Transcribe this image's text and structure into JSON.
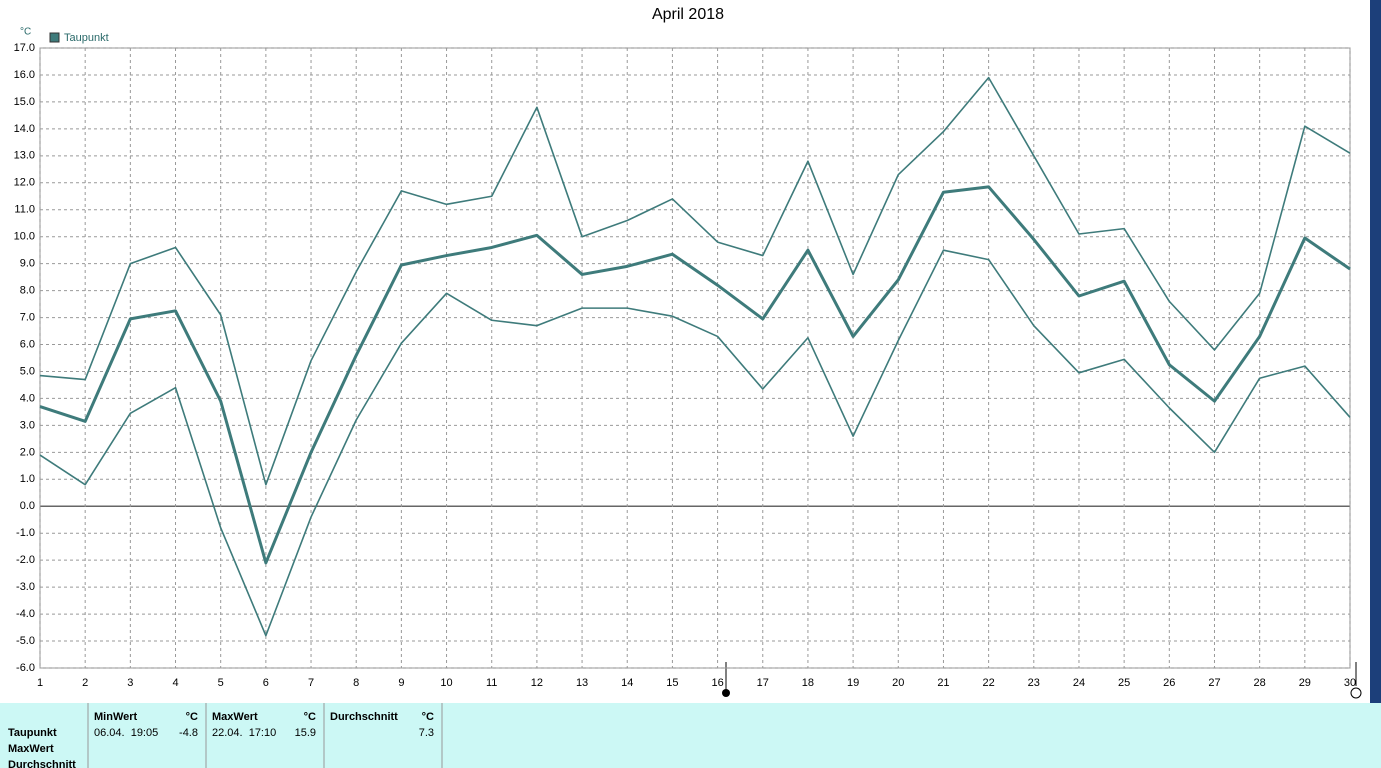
{
  "chart_data": {
    "type": "line",
    "title": "April 2018",
    "y_label": "°C",
    "x": [
      1,
      2,
      3,
      4,
      5,
      6,
      7,
      8,
      9,
      10,
      11,
      12,
      13,
      14,
      15,
      16,
      17,
      18,
      19,
      20,
      21,
      22,
      23,
      24,
      25,
      26,
      27,
      28,
      29,
      30
    ],
    "xlim": [
      1,
      30
    ],
    "xticks": [
      1,
      2,
      3,
      4,
      5,
      6,
      7,
      8,
      9,
      10,
      11,
      12,
      13,
      14,
      15,
      16,
      17,
      18,
      19,
      20,
      21,
      22,
      23,
      24,
      25,
      26,
      27,
      28,
      29,
      30
    ],
    "ylim": [
      -6,
      17
    ],
    "yticks": [
      {
        "value": -6,
        "label": "-6.0"
      },
      {
        "value": -5,
        "label": "-5.0"
      },
      {
        "value": -4,
        "label": "-4.0"
      },
      {
        "value": -3,
        "label": "-3.0"
      },
      {
        "value": -2,
        "label": "-2.0"
      },
      {
        "value": -1,
        "label": "-1.0"
      },
      {
        "value": 0,
        "label": "0.0"
      },
      {
        "value": 1,
        "label": "1.0"
      },
      {
        "value": 2,
        "label": "2.0"
      },
      {
        "value": 3,
        "label": "3.0"
      },
      {
        "value": 4,
        "label": "4.0"
      },
      {
        "value": 5,
        "label": "5.0"
      },
      {
        "value": 6,
        "label": "6.0"
      },
      {
        "value": 7,
        "label": "7.0"
      },
      {
        "value": 8,
        "label": "8.0"
      },
      {
        "value": 9,
        "label": "9.0"
      },
      {
        "value": 10,
        "label": "10.0"
      },
      {
        "value": 11,
        "label": "11.0"
      },
      {
        "value": 12,
        "label": "12.0"
      },
      {
        "value": 13,
        "label": "13.0"
      },
      {
        "value": 14,
        "label": "14.0"
      },
      {
        "value": 15,
        "label": "15.0"
      },
      {
        "value": 16,
        "label": "16.0"
      },
      {
        "value": 17,
        "label": "17.0"
      }
    ],
    "grid": true,
    "legend": "top-left",
    "series": [
      {
        "color": "#3e7b7b",
        "values": [
          4.85,
          4.7,
          9.0,
          9.6,
          7.1,
          0.8,
          5.4,
          8.7,
          11.7,
          11.2,
          11.5,
          14.8,
          10.0,
          10.6,
          11.4,
          9.8,
          9.3,
          12.8,
          8.6,
          12.3,
          13.9,
          15.9,
          13.0,
          10.1,
          10.3,
          7.6,
          5.8,
          7.9,
          14.1,
          13.1
        ]
      },
      {
        "name": "Taupunkt",
        "color": "#3e7b7b",
        "values": [
          3.7,
          3.15,
          6.95,
          7.25,
          3.9,
          -2.1,
          2.0,
          5.6,
          8.95,
          9.3,
          9.6,
          10.05,
          8.6,
          8.9,
          9.35,
          8.2,
          6.95,
          9.5,
          6.3,
          8.4,
          11.65,
          11.85,
          9.9,
          7.8,
          8.35,
          5.25,
          3.9,
          6.3,
          9.95,
          8.8
        ]
      },
      {
        "color": "#3e7b7b",
        "values": [
          1.9,
          0.8,
          3.45,
          4.4,
          -0.8,
          -4.8,
          -0.4,
          3.2,
          6.05,
          7.9,
          6.9,
          6.7,
          7.35,
          7.35,
          7.05,
          6.3,
          4.35,
          6.25,
          2.6,
          6.15,
          9.5,
          9.15,
          6.7,
          4.95,
          5.45,
          3.65,
          2.0,
          4.75,
          5.2,
          3.3
        ]
      }
    ]
  },
  "stats": {
    "columns": [
      {
        "label": "MinWert",
        "unit": "°C"
      },
      {
        "label": "MaxWert",
        "unit": "°C"
      },
      {
        "label": "Durchschnitt",
        "unit": "°C"
      }
    ],
    "rows": [
      "Taupunkt",
      "MaxWert",
      "Durchschnitt"
    ],
    "values": {
      "min_time": "06.04.  19:05",
      "min": -4.8,
      "max_time": "22.04.  17:10",
      "max": 15.9,
      "avg": 7.3
    }
  }
}
